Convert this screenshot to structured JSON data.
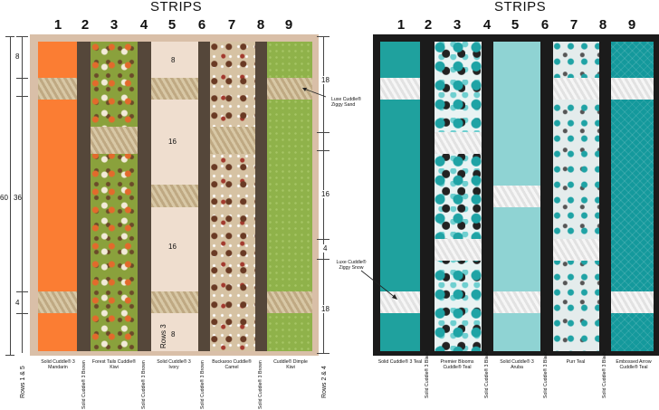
{
  "left_panel": {
    "title": "STRIPS",
    "numbers": [
      "1",
      "2",
      "3",
      "4",
      "5",
      "6",
      "7",
      "8",
      "9"
    ],
    "labels": [
      "Solid Cuddle® 3 Mandarin",
      "Solid Cuddle® 3 Brown",
      "Forest Tails Cuddle® Kiwi",
      "Solid Cuddle® 3 Brown",
      "Solid Cuddle® 3 Ivory",
      "Solid Cuddle® 3 Brown",
      "Buckaroo Cuddle® Camel",
      "Solid Cuddle® 3 Brown",
      "Cuddle® Dimple Kiwi"
    ],
    "left_dims": {
      "total": "60",
      "a": "8",
      "b": "36",
      "c": "4"
    },
    "strip5_dims": {
      "a": "8",
      "b": "16",
      "c": "16",
      "d": "8"
    },
    "rows_label": "Rows 3",
    "rows_left": "Rows 1 & 5",
    "rows_right": "Rows 2 & 4",
    "right_dims": {
      "a": "18",
      "b": "16",
      "c": "4",
      "d": "18"
    },
    "callout": "Luxe Cuddle® Ziggy Sand"
  },
  "right_panel": {
    "title": "STRIPS",
    "numbers": [
      "1",
      "2",
      "3",
      "4",
      "5",
      "6",
      "7",
      "8",
      "9"
    ],
    "labels": [
      "Solid Cuddle® 3 Teal",
      "Solid Cuddle® 3 Black",
      "Premier Blooms Cuddle® Teal",
      "Solid Cuddle® 3 Black",
      "Solid Cuddle® 3 Aruba",
      "Solid Cuddle® 3 Black",
      "Purr Teal",
      "Solid Cuddle® 3 Black",
      "Embossed Arrow Cuddle® Teal"
    ],
    "callout": "Luxe Cuddle® Ziggy Snow"
  },
  "colors": {
    "frame": "#d9bfa8",
    "mandarin": "#fb7d33",
    "brown": "#55473a",
    "kiwi": "#8aa13c",
    "ivory": "#efdecf",
    "camel": "#d6c2a3",
    "dimple": "#8fb24a",
    "ziggy_sand": "#c9b593",
    "black_frame": "#1b1b1b",
    "teal": "#1fa19e",
    "aruba": "#8fd3d3",
    "purr": "#e4ecec",
    "arrow_teal": "#14999c",
    "ziggy_snow": "#f1f1f1"
  }
}
